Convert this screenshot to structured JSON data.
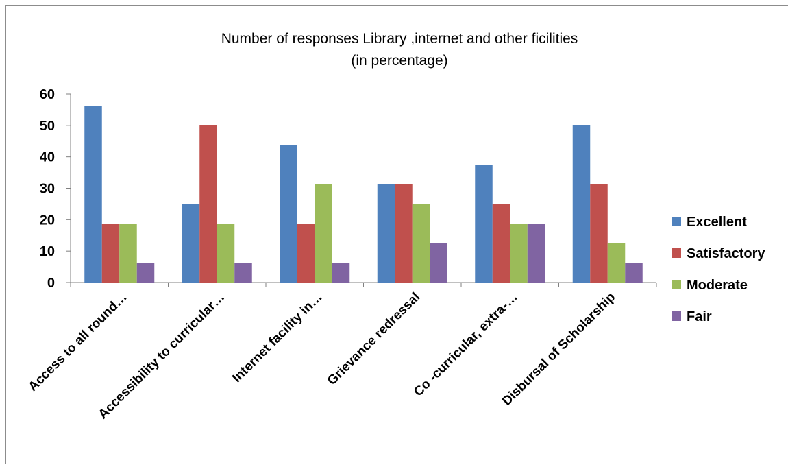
{
  "chart_data": {
    "type": "bar",
    "title": "Number of responses Library ,internet and other ficilities",
    "subtitle": "(in percentage)",
    "xlabel": "",
    "ylabel": "",
    "ylim": [
      0,
      60
    ],
    "yticks": [
      0,
      10,
      20,
      30,
      40,
      50,
      60
    ],
    "grid": false,
    "legend_position": "right",
    "categories": [
      "Access to all round…",
      "Accessibility to curricular…",
      "Internet facility in…",
      "Grievance redressal",
      "Co -curricular, extra-…",
      "Disbursal  of Scholarship"
    ],
    "series": [
      {
        "name": "Excellent",
        "color": "#4F81BD",
        "values": [
          56.25,
          25,
          43.75,
          31.25,
          37.5,
          50
        ]
      },
      {
        "name": "Satisfactory",
        "color": "#C0504D",
        "values": [
          18.75,
          50,
          18.75,
          31.25,
          25,
          31.25
        ]
      },
      {
        "name": "Moderate",
        "color": "#9BBB59",
        "values": [
          18.75,
          18.75,
          31.25,
          25,
          18.75,
          12.5
        ]
      },
      {
        "name": "Fair",
        "color": "#8064A2",
        "values": [
          6.25,
          6.25,
          6.25,
          12.5,
          18.75,
          6.25
        ]
      }
    ]
  }
}
